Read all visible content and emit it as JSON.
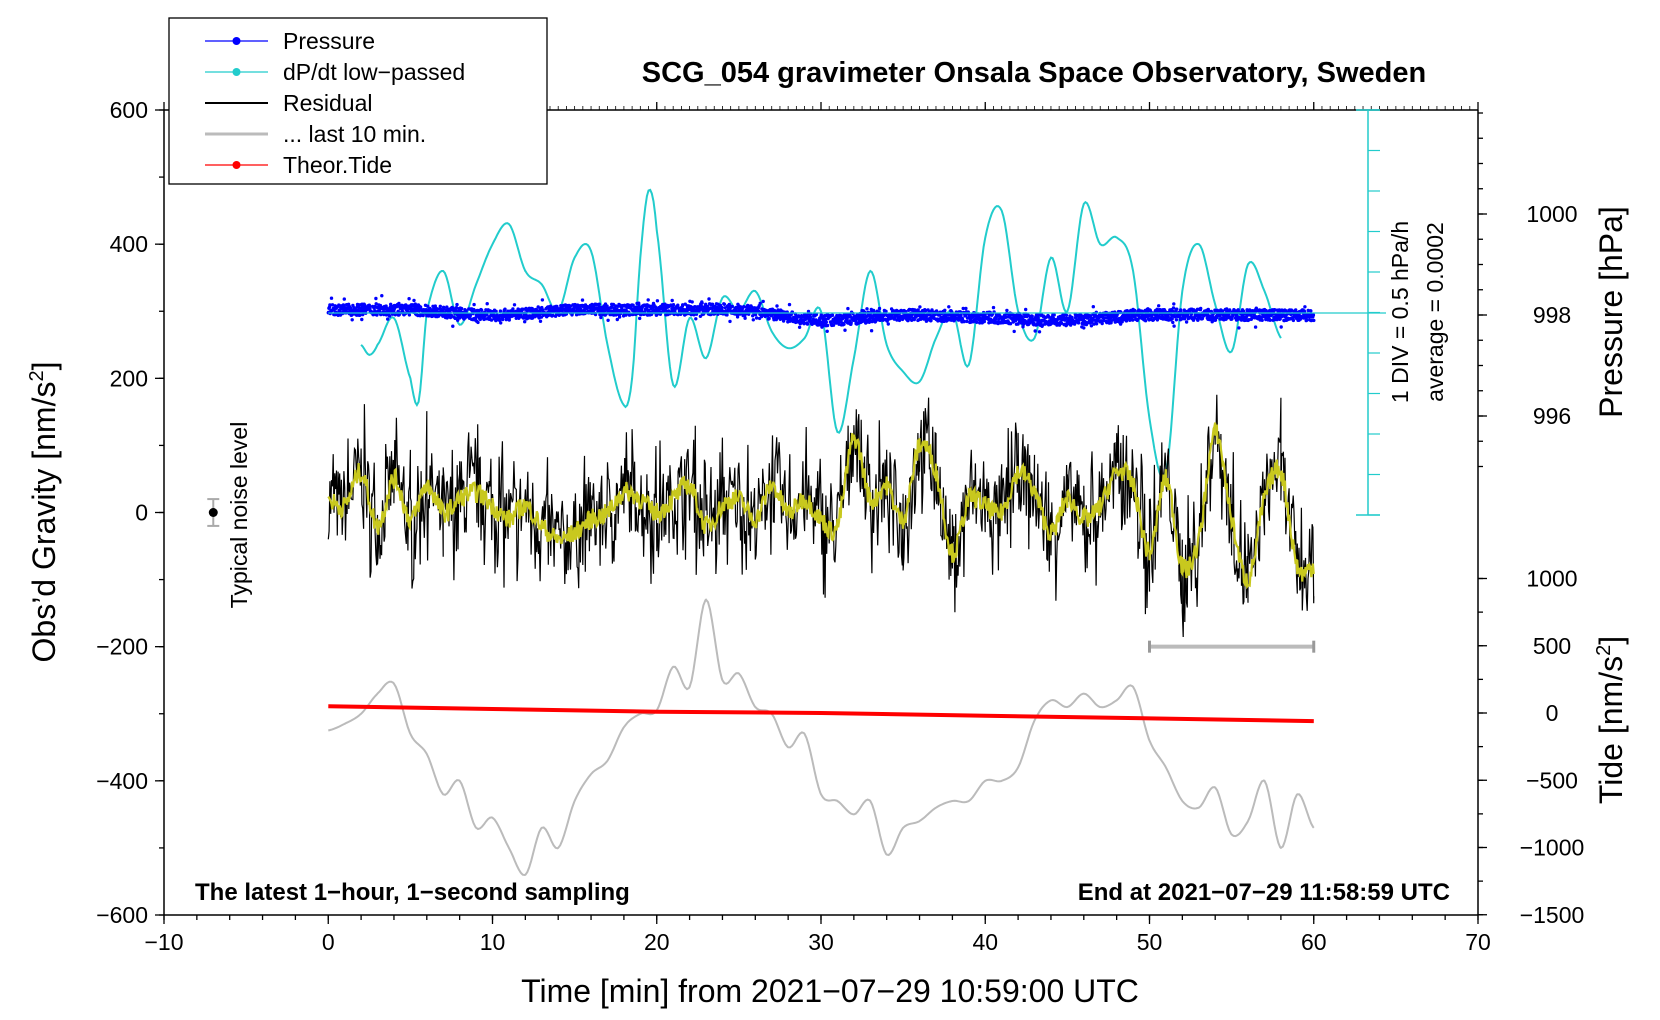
{
  "chart_data": {
    "type": "line",
    "title": "SCG_054 gravimeter Onsala Space Observatory, Sweden",
    "xlabel": "Time [min] from 2021−07−29 10:59:00 UTC",
    "ylabel_main": "Obs’d Gravity [nm/s",
    "ylabel_main_sup": "2",
    "ylabel_main_end": "]",
    "ylabel_pressure": "Pressure [hPa]",
    "ylabel_tide": "Tide [nm/s",
    "ylabel_tide_sup": "2",
    "ylabel_tide_end": "]",
    "xlim": [
      -10,
      70
    ],
    "ylim": [
      -600,
      600
    ],
    "x_ticks": [
      -10,
      0,
      10,
      20,
      30,
      40,
      50,
      60,
      70
    ],
    "x_tick_labels": [
      "−10",
      "0",
      "10",
      "20",
      "30",
      "40",
      "50",
      "60",
      "70"
    ],
    "y_ticks": [
      -600,
      -400,
      -200,
      0,
      200,
      400,
      600
    ],
    "y_tick_labels": [
      "−600",
      "−400",
      "−200",
      "0",
      "200",
      "400",
      "600"
    ],
    "pressure_ticks": [
      996,
      998,
      1000
    ],
    "pressure_tick_labels": [
      "996",
      "998",
      "1000"
    ],
    "pressure_range": [
      994,
      1002
    ],
    "tide_ticks": [
      -1500,
      -1000,
      -500,
      0,
      500,
      1000
    ],
    "tide_tick_labels": [
      "−1500",
      "−1000",
      "−500",
      "0",
      "500",
      "1000"
    ],
    "tide_range": [
      -1500,
      1000
    ],
    "legend": [
      {
        "label": "Pressure",
        "color": "#0000ff",
        "marker": true
      },
      {
        "label": "dP/dt low−passed",
        "color": "#22cccc",
        "marker": true
      },
      {
        "label": "Residual",
        "color": "#000000",
        "marker": false
      },
      {
        "label": "... last 10 min.",
        "color": "#bbbbbb",
        "marker": false
      },
      {
        "label": "Theor.Tide",
        "color": "#ff0000",
        "marker": true
      }
    ],
    "annotations": {
      "bottom_left": "The latest 1−hour, 1−second sampling",
      "bottom_right": "End at 2021−07−29 11:58:59 UTC",
      "noise": "Typical noise level",
      "dpdt_scale": "1 DIV = 0.5 hPa/h",
      "dpdt_average": "average = 0.0002"
    },
    "noise_marker": {
      "x": -7,
      "y": 0,
      "err": 20
    },
    "last10_bar": {
      "x0": 50,
      "x1": 60,
      "y": -200
    },
    "series": [
      {
        "name": "Pressure",
        "axis": "pressure",
        "color": "#0000ff",
        "x": [
          0,
          5,
          10,
          15,
          20,
          25,
          30,
          35,
          40,
          45,
          50,
          55,
          60
        ],
        "values": [
          998.1,
          998.1,
          998.0,
          998.1,
          998.1,
          998.1,
          997.9,
          998.0,
          997.95,
          997.9,
          998.0,
          998.0,
          998.0
        ]
      },
      {
        "name": "dP/dt low−passed",
        "axis": "main",
        "color": "#22cccc",
        "x": [
          2,
          2.5,
          3,
          4,
          5,
          5.5,
          6,
          7,
          8,
          9,
          10,
          11,
          12,
          13,
          14,
          15,
          16,
          17,
          18,
          18.5,
          19,
          19.5,
          20,
          21,
          22,
          23,
          24,
          25,
          26,
          27,
          28,
          29,
          30,
          31,
          32,
          33,
          34,
          35,
          36,
          37,
          38,
          39,
          40,
          41,
          42,
          43,
          44,
          45,
          46,
          47,
          48,
          49,
          50,
          51,
          52,
          53,
          54,
          55,
          56,
          57,
          58
        ],
        "values": [
          250,
          235,
          250,
          290,
          200,
          165,
          300,
          360,
          280,
          340,
          400,
          430,
          360,
          340,
          300,
          380,
          390,
          250,
          160,
          200,
          380,
          480,
          420,
          190,
          290,
          230,
          320,
          300,
          330,
          270,
          245,
          260,
          300,
          120,
          230,
          360,
          250,
          210,
          195,
          260,
          300,
          220,
          410,
          450,
          300,
          260,
          380,
          300,
          460,
          400,
          410,
          360,
          140,
          60,
          330,
          400,
          310,
          240,
          370,
          330,
          260
        ]
      },
      {
        "name": "Residual",
        "axis": "main",
        "color": "#000000",
        "x": [
          0,
          1,
          2,
          3,
          4,
          5,
          6,
          7,
          8,
          9,
          10,
          11,
          12,
          13,
          14,
          15,
          16,
          17,
          18,
          19,
          20,
          21,
          22,
          23,
          24,
          25,
          26,
          27,
          28,
          29,
          30,
          31,
          32,
          33,
          34,
          35,
          36,
          37,
          38,
          39,
          40,
          41,
          42,
          43,
          44,
          45,
          46,
          47,
          48,
          49,
          50,
          51,
          52,
          53,
          54,
          55,
          56,
          57,
          58,
          59,
          60
        ],
        "values": [
          20,
          10,
          60,
          -20,
          50,
          -10,
          40,
          0,
          20,
          30,
          10,
          -10,
          10,
          -20,
          -40,
          -30,
          -10,
          0,
          30,
          20,
          0,
          20,
          40,
          -20,
          10,
          20,
          -10,
          40,
          0,
          20,
          -10,
          -20,
          110,
          20,
          40,
          -10,
          100,
          60,
          -60,
          20,
          10,
          0,
          60,
          30,
          -30,
          20,
          -10,
          10,
          60,
          40,
          -60,
          50,
          -80,
          -40,
          120,
          -10,
          -100,
          20,
          60,
          -80,
          -80
        ]
      },
      {
        "name": "... last 10 min.",
        "axis": "main",
        "color": "#bbbbbb",
        "x": [
          0,
          1,
          2,
          3,
          4,
          5,
          6,
          7,
          8,
          9,
          10,
          11,
          12,
          13,
          14,
          15,
          16,
          17,
          18,
          19,
          20,
          21,
          22,
          23,
          24,
          25,
          26,
          27,
          28,
          29,
          30,
          31,
          32,
          33,
          34,
          35,
          36,
          37,
          38,
          39,
          40,
          41,
          42,
          43,
          44,
          45,
          46,
          47,
          48,
          49,
          50,
          51,
          52,
          53,
          54,
          55,
          56,
          57,
          58,
          59,
          60
        ],
        "values": [
          -325,
          -315,
          -300,
          -270,
          -255,
          -330,
          -360,
          -420,
          -400,
          -470,
          -455,
          -500,
          -540,
          -470,
          -500,
          -430,
          -390,
          -370,
          -320,
          -300,
          -295,
          -230,
          -260,
          -130,
          -250,
          -240,
          -290,
          -300,
          -350,
          -330,
          -420,
          -430,
          -450,
          -430,
          -510,
          -470,
          -460,
          -440,
          -430,
          -430,
          -400,
          -400,
          -380,
          -310,
          -280,
          -290,
          -270,
          -290,
          -280,
          -260,
          -340,
          -380,
          -430,
          -440,
          -410,
          -480,
          -460,
          -400,
          -500,
          -420,
          -470
        ]
      },
      {
        "name": "Theor.Tide",
        "axis": "tide",
        "color": "#ff0000",
        "x": [
          0,
          10,
          20,
          30,
          40,
          50,
          60
        ],
        "values": [
          50,
          30,
          10,
          0,
          -20,
          -40,
          -60
        ]
      }
    ]
  }
}
